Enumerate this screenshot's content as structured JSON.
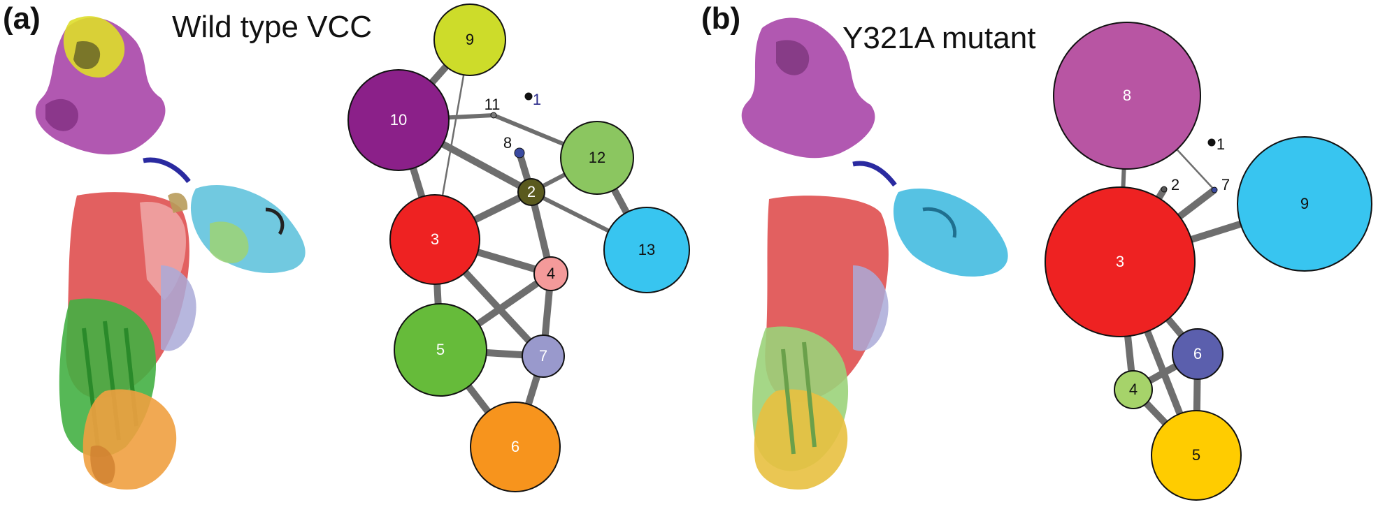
{
  "panels": [
    {
      "label": "(a)",
      "title": "Wild type VCC",
      "nodes": [
        {
          "id": "1",
          "color": "#111111",
          "label_color": "#2a2a8a"
        },
        {
          "id": "2",
          "color": "#5a5a1e",
          "label_color": "#ffffff"
        },
        {
          "id": "3",
          "color": "#ee2222",
          "label_color": "#ffffff"
        },
        {
          "id": "4",
          "color": "#f49a9a",
          "label_color": "#111111"
        },
        {
          "id": "5",
          "color": "#66bb3a",
          "label_color": "#ffffff"
        },
        {
          "id": "6",
          "color": "#f7941d",
          "label_color": "#ffffff"
        },
        {
          "id": "7",
          "color": "#9999cc",
          "label_color": "#ffffff"
        },
        {
          "id": "8",
          "color": "#3a4aa0",
          "label_color": "#111111"
        },
        {
          "id": "9",
          "color": "#cddc2a",
          "label_color": "#111111"
        },
        {
          "id": "10",
          "color": "#8b2089",
          "label_color": "#ffffff"
        },
        {
          "id": "11",
          "color": "#7a7a7a",
          "label_color": "#111111"
        },
        {
          "id": "12",
          "color": "#8bc660",
          "label_color": "#111111"
        },
        {
          "id": "13",
          "color": "#38c5f0",
          "label_color": "#111111"
        }
      ],
      "edges": [
        {
          "from": "9",
          "to": "10",
          "weight": "strong"
        },
        {
          "from": "9",
          "to": "3",
          "weight": "weak"
        },
        {
          "from": "10",
          "to": "11",
          "weight": "medium"
        },
        {
          "from": "11",
          "to": "12",
          "weight": "medium"
        },
        {
          "from": "10",
          "to": "2",
          "weight": "strong"
        },
        {
          "from": "10",
          "to": "3",
          "weight": "strong"
        },
        {
          "from": "8",
          "to": "2",
          "weight": "strong"
        },
        {
          "from": "12",
          "to": "2",
          "weight": "medium"
        },
        {
          "from": "12",
          "to": "13",
          "weight": "strong"
        },
        {
          "from": "2",
          "to": "13",
          "weight": "medium"
        },
        {
          "from": "2",
          "to": "3",
          "weight": "strong"
        },
        {
          "from": "2",
          "to": "4",
          "weight": "strong"
        },
        {
          "from": "3",
          "to": "4",
          "weight": "strong"
        },
        {
          "from": "3",
          "to": "5",
          "weight": "strong"
        },
        {
          "from": "3",
          "to": "7",
          "weight": "strong"
        },
        {
          "from": "4",
          "to": "5",
          "weight": "strong"
        },
        {
          "from": "4",
          "to": "7",
          "weight": "strong"
        },
        {
          "from": "5",
          "to": "7",
          "weight": "strong"
        },
        {
          "from": "5",
          "to": "6",
          "weight": "strong"
        },
        {
          "from": "7",
          "to": "6",
          "weight": "strong"
        }
      ]
    },
    {
      "label": "(b)",
      "title": "Y321A mutant",
      "nodes": [
        {
          "id": "1",
          "color": "#111111",
          "label_color": "#111111"
        },
        {
          "id": "2",
          "color": "#555555",
          "label_color": "#111111"
        },
        {
          "id": "3",
          "color": "#ee2222",
          "label_color": "#ffffff"
        },
        {
          "id": "4",
          "color": "#a6d36a",
          "label_color": "#111111"
        },
        {
          "id": "5",
          "color": "#ffcc00",
          "label_color": "#111111"
        },
        {
          "id": "6",
          "color": "#5b5fad",
          "label_color": "#ffffff"
        },
        {
          "id": "7",
          "color": "#3a4aa0",
          "label_color": "#111111"
        },
        {
          "id": "8",
          "color": "#b855a3",
          "label_color": "#ffffff"
        },
        {
          "id": "9",
          "color": "#38c5f0",
          "label_color": "#111111"
        }
      ],
      "edges": [
        {
          "from": "8",
          "to": "3",
          "weight": "medium"
        },
        {
          "from": "8",
          "to": "7",
          "weight": "weak"
        },
        {
          "from": "7",
          "to": "3",
          "weight": "strong"
        },
        {
          "from": "2",
          "to": "3",
          "weight": "strong"
        },
        {
          "from": "3",
          "to": "9",
          "weight": "strong"
        },
        {
          "from": "3",
          "to": "6",
          "weight": "strong"
        },
        {
          "from": "3",
          "to": "4",
          "weight": "strong"
        },
        {
          "from": "3",
          "to": "5",
          "weight": "strong"
        },
        {
          "from": "4",
          "to": "6",
          "weight": "strong"
        },
        {
          "from": "4",
          "to": "5",
          "weight": "strong"
        },
        {
          "from": "6",
          "to": "5",
          "weight": "strong"
        }
      ]
    }
  ]
}
